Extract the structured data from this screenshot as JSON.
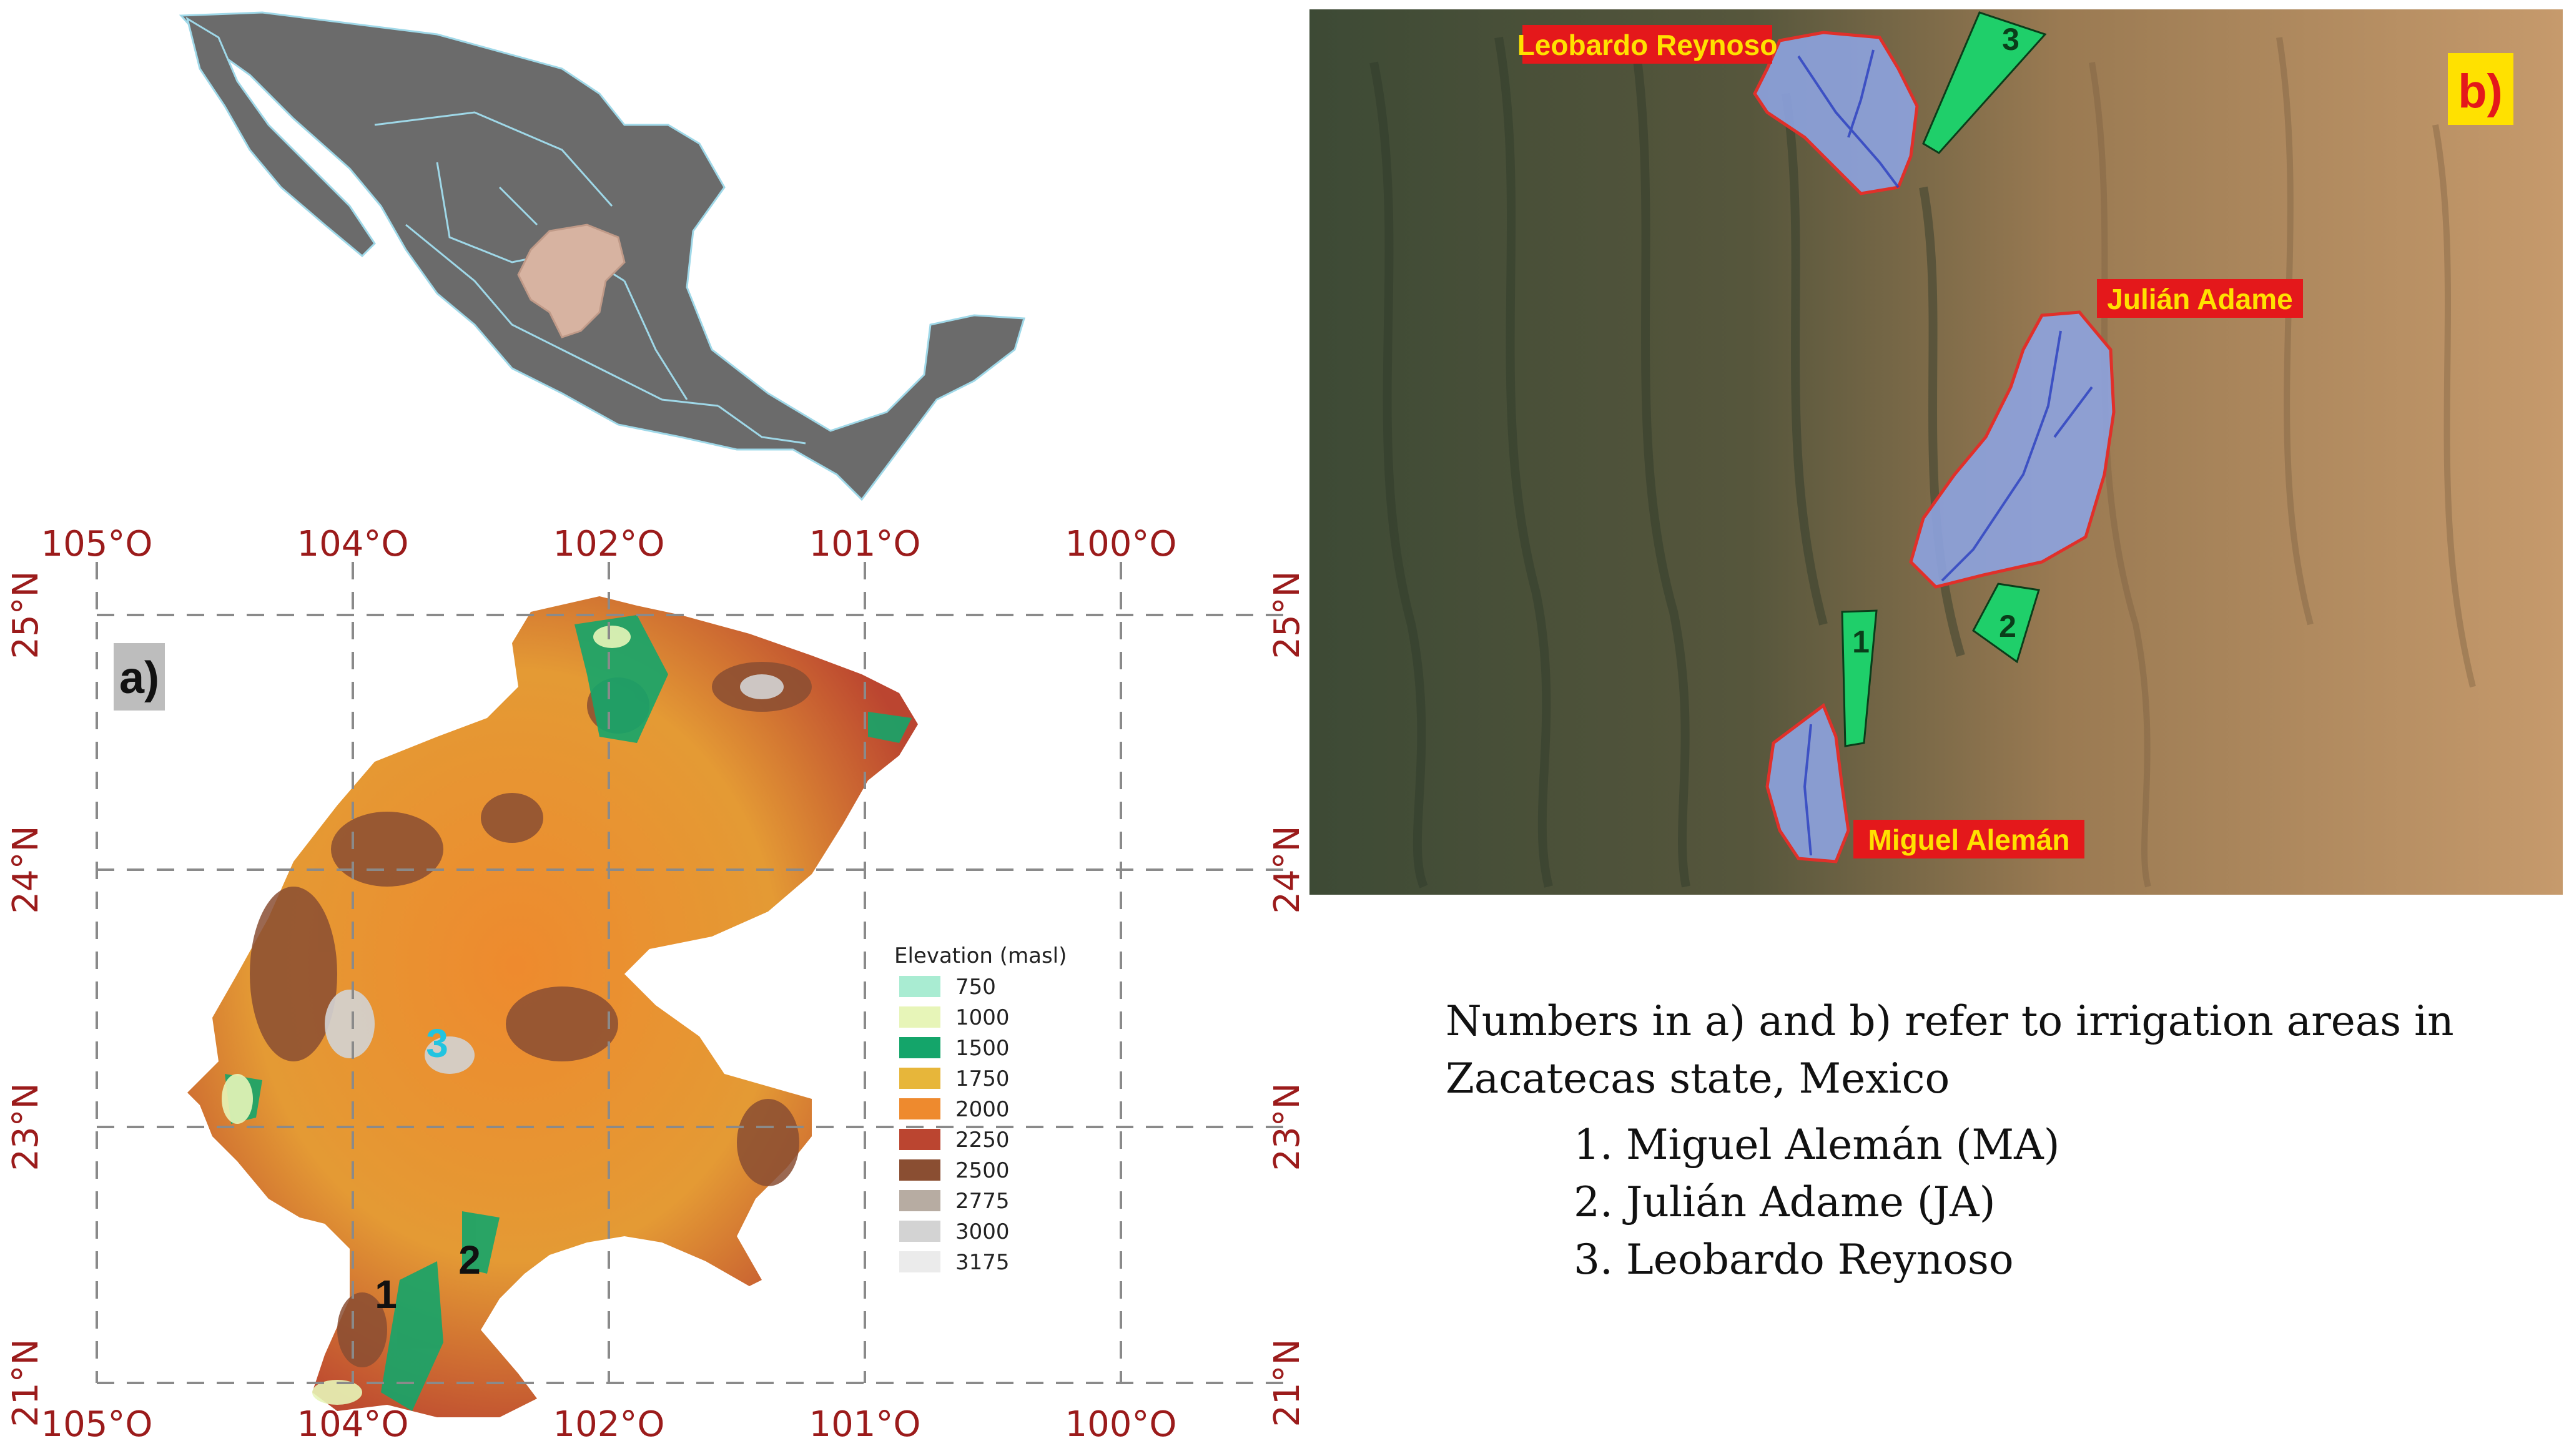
{
  "panel_a": {
    "label": "a)",
    "longitude_labels": [
      "105°O",
      "104°O",
      "102°O",
      "101°O",
      "100°O"
    ],
    "latitude_labels": [
      "25°N",
      "24°N",
      "23°N",
      "21°N"
    ],
    "legend": {
      "title": "Elevation (masl)",
      "items": [
        {
          "value": "750",
          "color": "#a9ecd2"
        },
        {
          "value": "1000",
          "color": "#e7f5b8"
        },
        {
          "value": "1500",
          "color": "#14a56a"
        },
        {
          "value": "1750",
          "color": "#e7b63a"
        },
        {
          "value": "2000",
          "color": "#ee8a2e"
        },
        {
          "value": "2250",
          "color": "#bb4530"
        },
        {
          "value": "2500",
          "color": "#8a4e32"
        },
        {
          "value": "2775",
          "color": "#b7aca2"
        },
        {
          "value": "3000",
          "color": "#d3d3d3"
        },
        {
          "value": "3175",
          "color": "#ebebeb"
        }
      ]
    },
    "area_numbers": [
      "1",
      "2",
      "3"
    ]
  },
  "panel_b": {
    "label": "b)",
    "area_labels": [
      "Leobardo Reynoso",
      "Julián Adame",
      "Miguel Alemán"
    ],
    "arrow_numbers": [
      "1",
      "2",
      "3"
    ]
  },
  "caption": {
    "text": "Numbers in a) and b) refer to irrigation areas in Zacatecas state, Mexico",
    "items": [
      "1.   Miguel Alemán (MA)",
      "2.   Julián Adame (JA)",
      "3.   Leobardo Reynoso"
    ]
  },
  "colors": {
    "mexico_fill": "#6b6b6b",
    "state_borders": "#9fd8e8",
    "zacatecas_highlight": "#d7b3a1",
    "grid": "#8a8a8a",
    "axis_text": "#9b1b1b",
    "watershed_fill": "#8da3e0",
    "watershed_border": "#e0302a",
    "arrow_green": "#1fcf6a",
    "label_bg": "#e4181b",
    "label_text": "#ffe100",
    "panel_b_label_bg": "#ffe100",
    "panel_b_label_text": "#e4181b"
  }
}
